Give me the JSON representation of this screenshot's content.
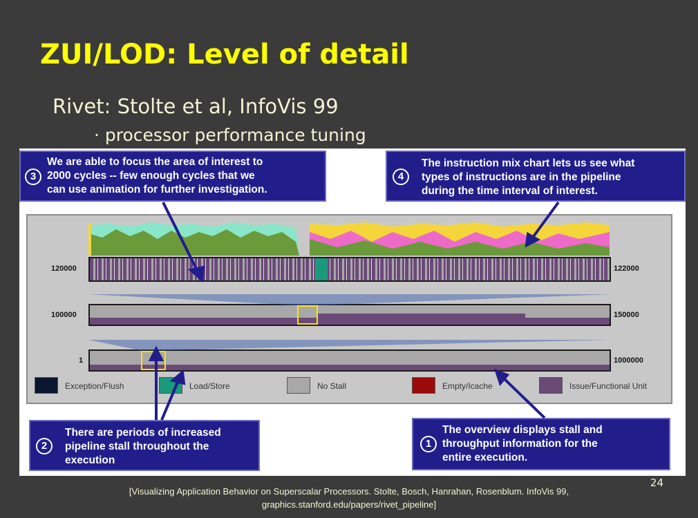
{
  "slide": {
    "title": "ZUI/LOD: Level of detail",
    "subtitle": "Rivet: Stolte et al, InfoVis 99",
    "bullet": "· processor performance tuning",
    "page_number": "24",
    "citation_line1": "[Visualizing Application Behavior on Superscalar Processors. Stolte, Bosch, Hanrahan, Rosenblum. InfoVis 99,",
    "citation_line2": "graphics.stanford.edu/papers/rivet_pipeline]"
  },
  "callouts": {
    "c3": {
      "num": "3",
      "lines": [
        "We are able to focus the area of interest to",
        "2000 cycles -- few enough cycles that we",
        "can use animation for further investigation."
      ]
    },
    "c4": {
      "num": "4",
      "lines": [
        "The instruction mix chart lets us see what",
        "types of instructions are in the pipeline",
        "during the time interval of interest."
      ]
    },
    "c2": {
      "num": "2",
      "lines": [
        "There are periods of increased",
        "pipeline stall throughout the",
        "execution"
      ]
    },
    "c1": {
      "num": "1",
      "lines": [
        "The overview displays stall and",
        "throughput information for the",
        "entire execution."
      ]
    }
  },
  "rows": {
    "row1": {
      "left": "120000",
      "right": "122000"
    },
    "row2": {
      "left": "100000",
      "right": "150000"
    },
    "row3": {
      "left": "1",
      "right": "1000000"
    }
  },
  "legend": [
    {
      "label": "Exception/Flush",
      "color": "#0a1530"
    },
    {
      "label": "Load/Store",
      "color": "#1a9a7a"
    },
    {
      "label": "No Stall",
      "color": "#a8a8a8"
    },
    {
      "label": "Empty/Icache",
      "color": "#9a0a0a"
    },
    {
      "label": "Issue/Functional Unit",
      "color": "#6b4a78"
    }
  ],
  "colors": {
    "title": "#ffff00",
    "callout_bg": "#211e8c",
    "mix_green": "#6a9a3a",
    "mix_pink": "#ee6ac8",
    "mix_yellow": "#f4d63a",
    "mix_cyan": "#8ae6c8",
    "highlight": "#ffe600"
  }
}
